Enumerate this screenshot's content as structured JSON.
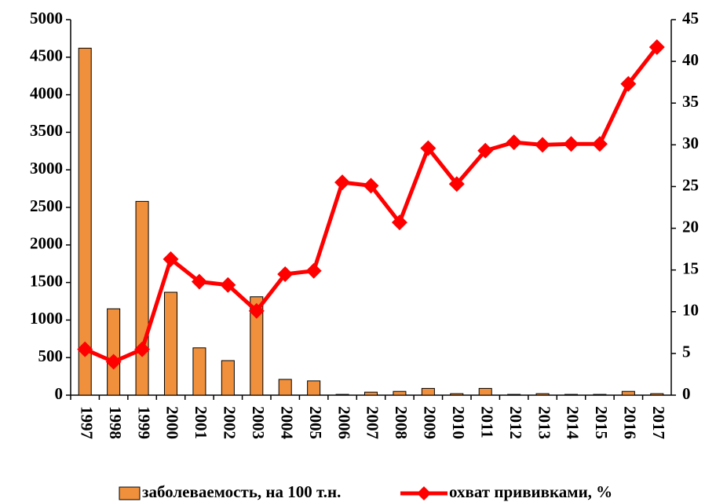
{
  "chart_data": {
    "type": "bar-line",
    "categories": [
      "1997",
      "1998",
      "1999",
      "2000",
      "2001",
      "2002",
      "2003",
      "2004",
      "2005",
      "2006",
      "2007",
      "2008",
      "2009",
      "2010",
      "2011",
      "2012",
      "2013",
      "2014",
      "2015",
      "2016",
      "2017"
    ],
    "series": [
      {
        "name": "заболеваемость, на 100 т.н.",
        "color": "#f0903c",
        "type": "bar",
        "values": [
          4620,
          1150,
          2580,
          1370,
          630,
          460,
          1310,
          210,
          190,
          10,
          40,
          50,
          90,
          20,
          90,
          10,
          20,
          10,
          10,
          50,
          20
        ]
      },
      {
        "name": "охват прививками, %",
        "color": "#ff0000",
        "type": "line",
        "axis": "y2",
        "values": [
          5.5,
          4.0,
          5.5,
          16.3,
          13.6,
          13.2,
          10.1,
          14.5,
          14.9,
          25.5,
          25.1,
          20.7,
          29.6,
          25.3,
          29.3,
          30.3,
          30.0,
          30.1,
          30.1,
          37.3,
          41.7
        ]
      }
    ],
    "ylim": [
      0,
      5000
    ],
    "yticks": [
      0,
      500,
      1000,
      1500,
      2000,
      2500,
      3000,
      3500,
      4000,
      4500,
      5000
    ],
    "y2lim": [
      0,
      45
    ],
    "y2ticks": [
      0,
      5,
      10,
      15,
      20,
      25,
      30,
      35,
      40,
      45
    ],
    "legend": "bottom",
    "grid": false
  }
}
